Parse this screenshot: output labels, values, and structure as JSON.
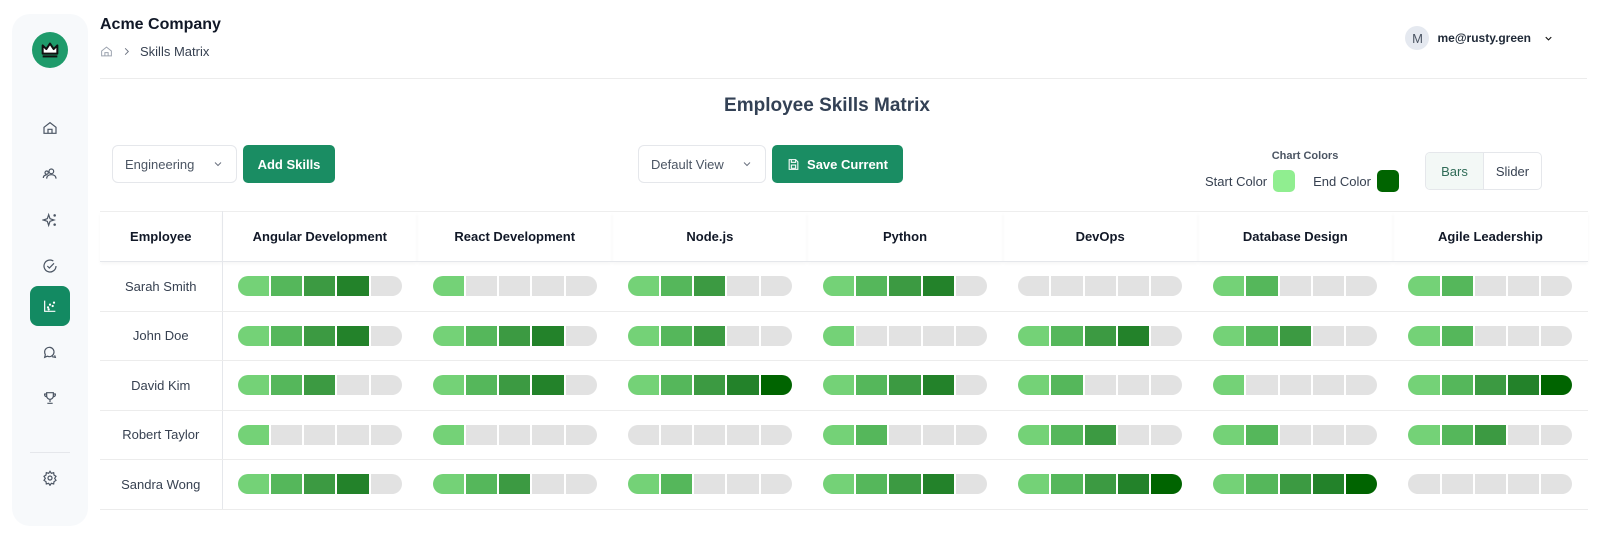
{
  "app": {
    "company": "Acme Company"
  },
  "breadcrumb": {
    "home_icon": "home-icon",
    "current": "Skills Matrix"
  },
  "user": {
    "initial": "M",
    "email": "me@rusty.green"
  },
  "sidebar": {
    "items": [
      {
        "id": "home",
        "icon": "home-icon",
        "active": false
      },
      {
        "id": "team",
        "icon": "users-icon",
        "active": false
      },
      {
        "id": "sparkles",
        "icon": "sparkles-icon",
        "active": false
      },
      {
        "id": "tasks",
        "icon": "check-circle-icon",
        "active": false
      },
      {
        "id": "skills-matrix",
        "icon": "scatter-chart-icon",
        "active": true
      },
      {
        "id": "chat",
        "icon": "chat-icon",
        "active": false
      },
      {
        "id": "awards",
        "icon": "trophy-icon",
        "active": false
      }
    ],
    "footer": [
      {
        "id": "settings",
        "icon": "gear-icon"
      }
    ]
  },
  "page": {
    "title": "Employee Skills Matrix"
  },
  "toolbar": {
    "department_select": "Engineering",
    "add_skills_label": "Add Skills",
    "view_select": "Default View",
    "save_label": "Save Current",
    "chart_colors_label": "Chart Colors",
    "start_color_label": "Start Color",
    "end_color_label": "End Color",
    "start_color": "#90ee90",
    "end_color": "#006400",
    "toggle": {
      "options": [
        "Bars",
        "Slider"
      ],
      "selected": "Bars"
    }
  },
  "level_colors": [
    "#74d277",
    "#55b75b",
    "#3c9a42",
    "#23822a",
    "#006400"
  ],
  "empty_color": "#e2e2e2",
  "chart_data": {
    "type": "table",
    "title": "Employee Skills Matrix",
    "scale_max": 5,
    "columns": [
      "Employee",
      "Angular Development",
      "React Development",
      "Node.js",
      "Python",
      "DevOps",
      "Database Design",
      "Agile Leadership"
    ],
    "rows": [
      {
        "employee": "Sarah Smith",
        "levels": [
          4,
          1,
          3,
          4,
          0,
          2,
          2
        ]
      },
      {
        "employee": "John Doe",
        "levels": [
          4,
          4,
          3,
          1,
          4,
          3,
          2
        ]
      },
      {
        "employee": "David Kim",
        "levels": [
          3,
          4,
          5,
          4,
          2,
          1,
          5
        ]
      },
      {
        "employee": "Robert Taylor",
        "levels": [
          1,
          1,
          0,
          2,
          3,
          2,
          3
        ]
      },
      {
        "employee": "Sandra Wong",
        "levels": [
          4,
          3,
          2,
          4,
          5,
          5,
          0
        ]
      }
    ]
  }
}
